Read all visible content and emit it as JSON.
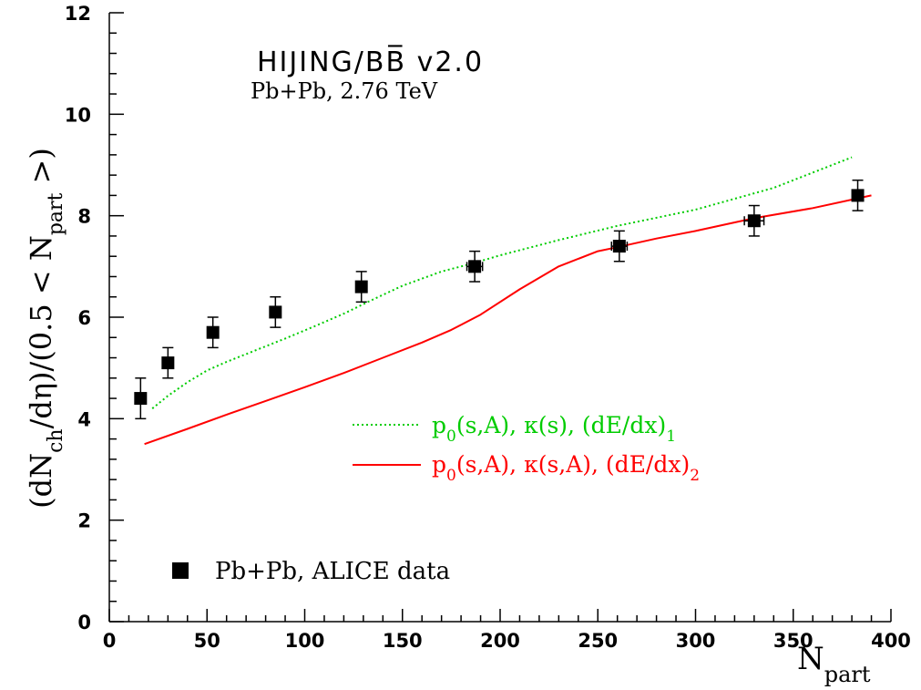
{
  "chart_data": {
    "type": "line",
    "title_main": "HIJING/BB̅ v2.0",
    "title_sub": "Pb+Pb, 2.76 TeV",
    "xlabel": {
      "base": "N",
      "sub": "part"
    },
    "ylabel": {
      "p1": "(dN",
      "s1": "ch",
      "p2": "/dη)/(0.5 < N",
      "s2": "part",
      "p3": " >)"
    },
    "xlim": [
      0,
      400
    ],
    "ylim": [
      0,
      12
    ],
    "x_ticks": [
      0,
      50,
      100,
      150,
      200,
      250,
      300,
      350,
      400
    ],
    "y_ticks": [
      0,
      2,
      4,
      6,
      8,
      10,
      12
    ],
    "legend_placement": "center-right",
    "series": [
      {
        "label": {
          "a": "p",
          "a_sub": "0",
          "b": "(s,A), κ(s), (dE/dx)",
          "b_sub": "1"
        },
        "style": "dotted",
        "color": "#00cc00",
        "x": [
          22,
          30,
          40,
          50,
          60,
          75,
          90,
          105,
          120,
          135,
          150,
          170,
          185,
          200,
          230,
          260,
          300,
          340,
          380
        ],
        "y": [
          4.2,
          4.45,
          4.72,
          4.95,
          5.12,
          5.35,
          5.58,
          5.82,
          6.07,
          6.35,
          6.62,
          6.9,
          7.05,
          7.22,
          7.52,
          7.8,
          8.12,
          8.55,
          9.15
        ]
      },
      {
        "label": {
          "a": "p",
          "a_sub": "0",
          "b": "(s,A), κ(s,A), (dE/dx)",
          "b_sub": "2"
        },
        "style": "solid",
        "color": "#ff0000",
        "x": [
          18,
          40,
          60,
          80,
          100,
          120,
          140,
          160,
          175,
          190,
          210,
          230,
          250,
          260,
          280,
          300,
          330,
          360,
          390
        ],
        "y": [
          3.5,
          3.8,
          4.08,
          4.35,
          4.62,
          4.9,
          5.2,
          5.5,
          5.75,
          6.05,
          6.55,
          7.0,
          7.3,
          7.38,
          7.55,
          7.7,
          7.95,
          8.15,
          8.4
        ]
      }
    ],
    "points": {
      "label": "Pb+Pb, ALICE data",
      "color": "#000000",
      "x": [
        16,
        30,
        53,
        85,
        129,
        187,
        261,
        330,
        383
      ],
      "y": [
        4.4,
        5.1,
        5.7,
        6.1,
        6.6,
        7.0,
        7.4,
        7.9,
        8.4
      ],
      "yerr": [
        0.4,
        0.3,
        0.3,
        0.3,
        0.3,
        0.3,
        0.3,
        0.3,
        0.3
      ],
      "xerr": [
        0,
        0,
        0,
        0,
        0,
        4,
        4,
        5,
        0
      ]
    }
  }
}
